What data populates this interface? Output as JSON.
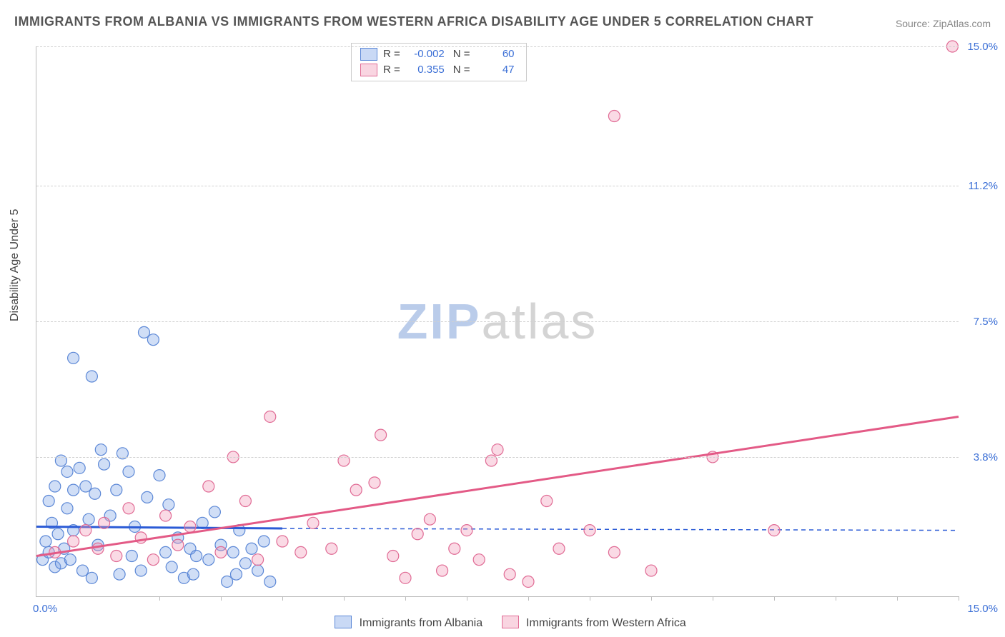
{
  "title": "IMMIGRANTS FROM ALBANIA VS IMMIGRANTS FROM WESTERN AFRICA DISABILITY AGE UNDER 5 CORRELATION CHART",
  "source": "Source: ZipAtlas.com",
  "ylabel": "Disability Age Under 5",
  "watermark_zip": "ZIP",
  "watermark_atlas": "atlas",
  "chart": {
    "type": "scatter",
    "xlim": [
      0,
      15
    ],
    "ylim": [
      0,
      15
    ],
    "y_ticks": [
      3.8,
      7.5,
      11.2,
      15.0
    ],
    "y_tick_labels": [
      "3.8%",
      "7.5%",
      "11.2%",
      "15.0%"
    ],
    "x_corner_labels": [
      "0.0%",
      "15.0%"
    ],
    "x_tick_positions": [
      2,
      3,
      4,
      5,
      6,
      7,
      8,
      9,
      10,
      11,
      12,
      13,
      14,
      15
    ],
    "background_color": "#ffffff",
    "grid_color": "#d0d0d0",
    "axis_color": "#bbbbbb",
    "tick_label_color": "#3b6fd6",
    "series": [
      {
        "name": "Immigrants from Albania",
        "color_fill": "rgba(120,160,230,0.35)",
        "color_stroke": "#5b87d6",
        "swatch_fill": "rgba(120,160,230,0.4)",
        "swatch_border": "#5b87d6",
        "marker_radius": 8,
        "R": "-0.002",
        "N": "60",
        "trend": {
          "x1": 0,
          "y1": 1.9,
          "x2": 4,
          "y2": 1.85
        },
        "trend_ext": {
          "x1": 4,
          "y1": 1.85,
          "x2": 15,
          "y2": 1.8
        },
        "trend_color": "#2b5bd6",
        "points": [
          [
            0.1,
            1.0
          ],
          [
            0.2,
            1.2
          ],
          [
            0.3,
            0.8
          ],
          [
            0.15,
            1.5
          ],
          [
            0.25,
            2.0
          ],
          [
            0.35,
            1.7
          ],
          [
            0.4,
            0.9
          ],
          [
            0.45,
            1.3
          ],
          [
            0.5,
            2.4
          ],
          [
            0.55,
            1.0
          ],
          [
            0.6,
            1.8
          ],
          [
            0.7,
            3.5
          ],
          [
            0.75,
            0.7
          ],
          [
            0.8,
            3.0
          ],
          [
            0.85,
            2.1
          ],
          [
            0.9,
            0.5
          ],
          [
            0.95,
            2.8
          ],
          [
            1.0,
            1.4
          ],
          [
            1.05,
            4.0
          ],
          [
            0.6,
            6.5
          ],
          [
            0.9,
            6.0
          ],
          [
            1.1,
            3.6
          ],
          [
            1.2,
            2.2
          ],
          [
            1.3,
            2.9
          ],
          [
            1.35,
            0.6
          ],
          [
            1.4,
            3.9
          ],
          [
            1.5,
            3.4
          ],
          [
            1.55,
            1.1
          ],
          [
            1.6,
            1.9
          ],
          [
            1.7,
            0.7
          ],
          [
            1.75,
            7.2
          ],
          [
            1.8,
            2.7
          ],
          [
            1.9,
            7.0
          ],
          [
            2.0,
            3.3
          ],
          [
            2.1,
            1.2
          ],
          [
            2.15,
            2.5
          ],
          [
            2.2,
            0.8
          ],
          [
            2.3,
            1.6
          ],
          [
            2.4,
            0.5
          ],
          [
            2.5,
            1.3
          ],
          [
            2.55,
            0.6
          ],
          [
            2.6,
            1.1
          ],
          [
            2.7,
            2.0
          ],
          [
            2.8,
            1.0
          ],
          [
            2.9,
            2.3
          ],
          [
            3.0,
            1.4
          ],
          [
            3.1,
            0.4
          ],
          [
            3.2,
            1.2
          ],
          [
            3.25,
            0.6
          ],
          [
            3.3,
            1.8
          ],
          [
            3.4,
            0.9
          ],
          [
            3.5,
            1.3
          ],
          [
            3.6,
            0.7
          ],
          [
            3.7,
            1.5
          ],
          [
            3.8,
            0.4
          ],
          [
            0.4,
            3.7
          ],
          [
            0.5,
            3.4
          ],
          [
            0.3,
            3.0
          ],
          [
            0.2,
            2.6
          ],
          [
            0.6,
            2.9
          ]
        ]
      },
      {
        "name": "Immigrants from Western Africa",
        "color_fill": "rgba(240,150,180,0.35)",
        "color_stroke": "#e06a94",
        "swatch_fill": "rgba(240,150,180,0.4)",
        "swatch_border": "#e06a94",
        "marker_radius": 8,
        "R": "0.355",
        "N": "47",
        "trend": {
          "x1": 0,
          "y1": 1.1,
          "x2": 15,
          "y2": 4.9
        },
        "trend_color": "#e35a86",
        "points": [
          [
            0.3,
            1.2
          ],
          [
            0.6,
            1.5
          ],
          [
            0.8,
            1.8
          ],
          [
            1.0,
            1.3
          ],
          [
            1.1,
            2.0
          ],
          [
            1.3,
            1.1
          ],
          [
            1.5,
            2.4
          ],
          [
            1.7,
            1.6
          ],
          [
            1.9,
            1.0
          ],
          [
            2.1,
            2.2
          ],
          [
            2.3,
            1.4
          ],
          [
            2.5,
            1.9
          ],
          [
            2.8,
            3.0
          ],
          [
            3.0,
            1.2
          ],
          [
            3.2,
            3.8
          ],
          [
            3.4,
            2.6
          ],
          [
            3.6,
            1.0
          ],
          [
            3.8,
            4.9
          ],
          [
            4.0,
            1.5
          ],
          [
            4.3,
            1.2
          ],
          [
            4.5,
            2.0
          ],
          [
            4.8,
            1.3
          ],
          [
            5.0,
            3.7
          ],
          [
            5.2,
            2.9
          ],
          [
            5.5,
            3.1
          ],
          [
            5.6,
            4.4
          ],
          [
            5.8,
            1.1
          ],
          [
            6.0,
            0.5
          ],
          [
            6.2,
            1.7
          ],
          [
            6.4,
            2.1
          ],
          [
            6.6,
            0.7
          ],
          [
            6.8,
            1.3
          ],
          [
            7.0,
            1.8
          ],
          [
            7.2,
            1.0
          ],
          [
            7.4,
            3.7
          ],
          [
            7.5,
            4.0
          ],
          [
            7.7,
            0.6
          ],
          [
            8.0,
            0.4
          ],
          [
            8.3,
            2.6
          ],
          [
            8.5,
            1.3
          ],
          [
            9.0,
            1.8
          ],
          [
            9.4,
            1.2
          ],
          [
            9.4,
            13.1
          ],
          [
            10.0,
            0.7
          ],
          [
            11.0,
            3.8
          ],
          [
            12.0,
            1.8
          ],
          [
            14.9,
            15.0
          ]
        ]
      }
    ]
  },
  "bottom_legend": [
    "Immigrants from Albania",
    "Immigrants from Western Africa"
  ],
  "legend_r_label": "R =",
  "legend_n_label": "N ="
}
